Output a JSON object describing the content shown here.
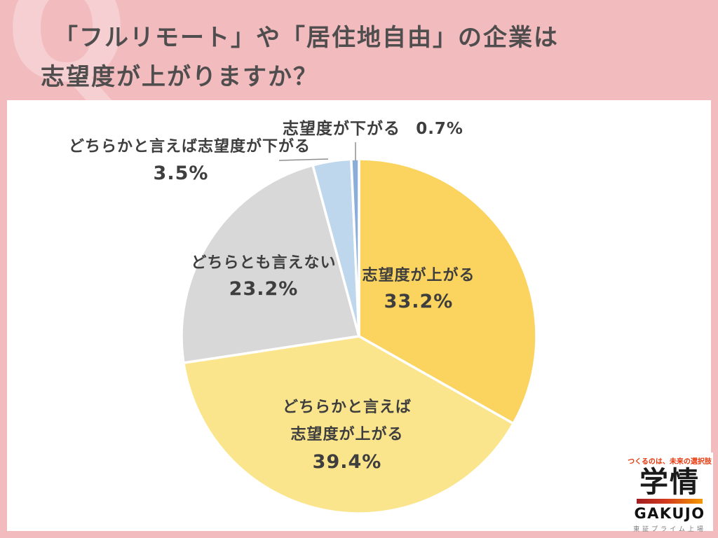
{
  "header": {
    "q_watermark": "Q",
    "title_line1": "「フルリモート」や「居住地自由」の企業は",
    "title_line2": "志望度が上がりますか？"
  },
  "chart_data": {
    "type": "pie",
    "title": "「フルリモート」や「居住地自由」の企業は志望度が上がりますか？",
    "unit": "%",
    "direction": "clockwise",
    "start_angle_deg": 0,
    "legend_position": "labels-on-chart",
    "slices": [
      {
        "id": "up",
        "label": "志望度が上がる",
        "value": 33.2,
        "pct_label": "33.2%",
        "color": "#FBD35F",
        "label_lines": [
          "志望度が上がる"
        ]
      },
      {
        "id": "somewhat_up",
        "label": "どちらかと言えば志望度が上がる",
        "value": 39.4,
        "pct_label": "39.4%",
        "color": "#FBE58C",
        "label_lines": [
          "どちらかと言えば",
          "志望度が上がる"
        ]
      },
      {
        "id": "neutral",
        "label": "どちらとも言えない",
        "value": 23.2,
        "pct_label": "23.2%",
        "color": "#D8D8D8",
        "label_lines": [
          "どちらとも言えない"
        ]
      },
      {
        "id": "somewhat_down",
        "label": "どちらかと言えば志望度が下がる",
        "value": 3.5,
        "pct_label": "3.5%",
        "color": "#BFD7ED",
        "label_lines": [
          "どちらかと言えば志望度が下がる"
        ]
      },
      {
        "id": "down",
        "label": "志望度が下がる",
        "value": 0.7,
        "pct_label": "0.7%",
        "color": "#8AAED8",
        "label_lines": [
          "志望度が下がる"
        ]
      }
    ]
  },
  "logo": {
    "tagline": "つくるのは、未来の選択肢",
    "name_jp": "学情",
    "name_en": "GAKUJO",
    "listing": "東証プライム上場"
  },
  "colors": {
    "frame_pink": "#F2BCBF",
    "watermark_pink": "#F5CFD2",
    "panel_white": "#FFFFFF",
    "title_text": "#4F4D4D",
    "label_text": "#3E3E3E",
    "leader_line": "#8F8F8F",
    "logo_red": "#E8380D",
    "logo_gradient_left": "#A01D22",
    "logo_gradient_right": "#F39800"
  }
}
